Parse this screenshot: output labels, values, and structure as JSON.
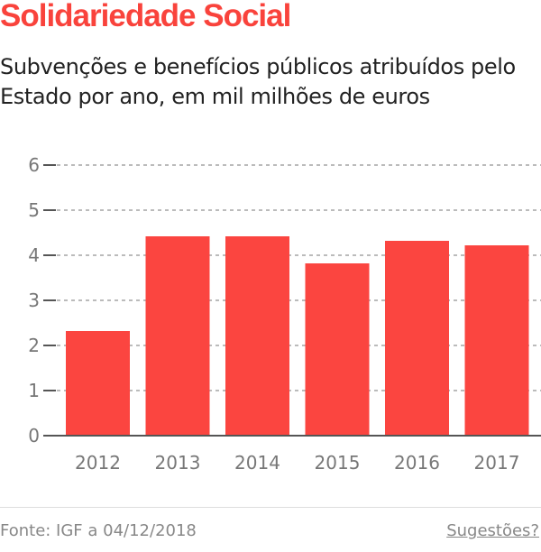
{
  "header": {
    "title": "Solidariedade Social",
    "subtitle": "Subvenções e benefícios públicos atribuídos pelo Estado por ano, em mil milhões de euros"
  },
  "chart_data": {
    "type": "bar",
    "categories": [
      "2012",
      "2013",
      "2014",
      "2015",
      "2016",
      "2017"
    ],
    "values": [
      2.32,
      4.42,
      4.42,
      3.82,
      4.32,
      4.22
    ],
    "ylim": [
      0,
      6
    ],
    "yticks": [
      "0",
      "1",
      "2",
      "3",
      "4",
      "5",
      "6"
    ],
    "grid": true,
    "bar_color": "#fb4540"
  },
  "footer": {
    "source": "Fonte: IGF a 04/12/2018",
    "suggestions": "Sugestões?"
  }
}
